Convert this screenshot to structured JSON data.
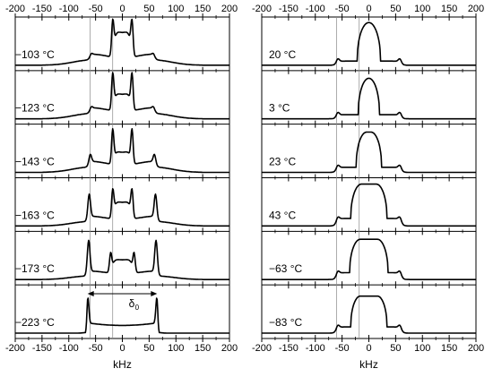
{
  "chart_data": [
    {
      "type": "line",
      "xlabel": "kHz",
      "xlim": [
        -200,
        200
      ],
      "xticks": [
        -200,
        -150,
        -100,
        -50,
        0,
        50,
        100,
        150,
        200
      ],
      "reference_lines_x": [
        -60,
        -18
      ],
      "annotation": {
        "label": "δ",
        "subscript": "0",
        "from_x": -65,
        "to_x": 65,
        "panel_index": 5
      },
      "series": [
        {
          "name": "−103 °C",
          "shape": {
            "kind": "horn",
            "horn": 18,
            "step": 60,
            "sat": 62,
            "plateau": 0.62,
            "hornH": 0.78,
            "dip": 0.58,
            "wing": 0.12,
            "bump": 0.05,
            "innerHorn": 0,
            "innerH": 0
          }
        },
        {
          "name": "−123 °C",
          "shape": {
            "kind": "horn",
            "horn": 18,
            "step": 60,
            "sat": 62,
            "plateau": 0.42,
            "hornH": 0.82,
            "dip": 0.4,
            "wing": 0.12,
            "bump": 0.06,
            "innerHorn": 0,
            "innerH": 0
          }
        },
        {
          "name": "−143 °C",
          "shape": {
            "kind": "horn",
            "horn": 18,
            "step": 62,
            "sat": 62,
            "plateau": 0.32,
            "hornH": 0.78,
            "dip": 0.3,
            "wing": 0.12,
            "bump": 0.2,
            "innerHorn": 0,
            "innerH": 0
          }
        },
        {
          "name": "−163 °C",
          "shape": {
            "kind": "horn",
            "horn": 18,
            "step": 64,
            "sat": 64,
            "plateau": 0.45,
            "hornH": 0.62,
            "dip": 0.35,
            "wing": 0.1,
            "bump": 0.55,
            "innerHorn": 0,
            "innerH": 0
          }
        },
        {
          "name": "−173 °C",
          "shape": {
            "kind": "horn",
            "horn": 22,
            "step": 65,
            "sat": 65,
            "plateau": 0.35,
            "hornH": 0.42,
            "dip": 0.3,
            "wing": 0.08,
            "bump": 0.75,
            "innerHorn": 0,
            "innerH": 0
          }
        },
        {
          "name": "−223 °C",
          "shape": {
            "kind": "pake",
            "horn": 65,
            "step": 65,
            "sat": 65,
            "plateau": 0.18,
            "hornH": 0.72,
            "dip": 0.15,
            "wing": 0.02,
            "bump": 0,
            "innerHorn": 0,
            "innerH": 0
          }
        }
      ]
    },
    {
      "type": "line",
      "xlabel": "kHz",
      "xlim": [
        -200,
        200
      ],
      "xticks": [
        -200,
        -150,
        -100,
        -50,
        0,
        50,
        100,
        150,
        200
      ],
      "reference_lines_x": [
        -60,
        -18
      ],
      "series": [
        {
          "name": "20 °C",
          "shape": {
            "kind": "dome",
            "width": 22,
            "top": 0.9,
            "wing": 0.12,
            "step": 60,
            "flat": 0
          }
        },
        {
          "name": "3 °C",
          "shape": {
            "kind": "dome",
            "width": 20,
            "top": 0.85,
            "wing": 0.12,
            "step": 60,
            "flat": 0
          }
        },
        {
          "name": "23 °C",
          "shape": {
            "kind": "dome",
            "width": 20,
            "top": 0.82,
            "wing": 0.15,
            "step": 60,
            "flat": 4
          }
        },
        {
          "name": "43 °C",
          "shape": {
            "kind": "dome",
            "width": 20,
            "top": 0.8,
            "wing": 0.22,
            "step": 60,
            "flat": 14
          }
        },
        {
          "name": "−63 °C",
          "shape": {
            "kind": "dome",
            "width": 20,
            "top": 0.78,
            "wing": 0.2,
            "step": 60,
            "flat": 16
          }
        },
        {
          "name": "−83 °C",
          "shape": {
            "kind": "dome",
            "width": 18,
            "top": 0.72,
            "wing": 0.18,
            "step": 60,
            "flat": 16
          }
        }
      ]
    }
  ]
}
